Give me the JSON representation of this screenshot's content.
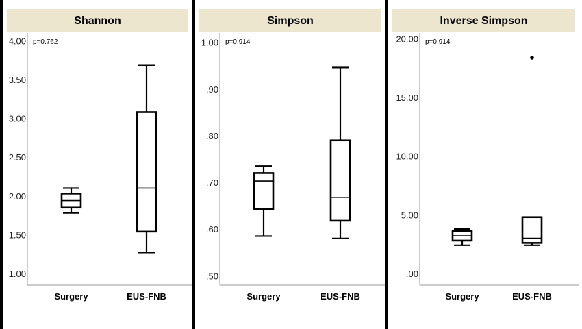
{
  "colors": {
    "header_strip": "#ede6cf",
    "box_stroke": "#000000",
    "frame": "#9a9a9a"
  },
  "chart_data": [
    {
      "type": "box",
      "title": "Shannon",
      "annotation": "p=0.762",
      "categories": [
        "Surgery",
        "EUS-FNB"
      ],
      "ylim": [
        0.85,
        4.1
      ],
      "ytick_values": [
        1.0,
        1.5,
        2.0,
        2.5,
        3.0,
        3.5,
        4.0
      ],
      "ytick_labels": [
        "1.00",
        "1.50",
        "2.00",
        "2.50",
        "3.00",
        "3.50",
        "4.00"
      ],
      "boxes": [
        {
          "category": "Surgery",
          "min": 1.78,
          "q1": 1.85,
          "median": 1.94,
          "q3": 2.03,
          "max": 2.1,
          "outliers": []
        },
        {
          "category": "EUS-FNB",
          "min": 1.27,
          "q1": 1.54,
          "median": 2.1,
          "q3": 3.08,
          "max": 3.68,
          "outliers": []
        }
      ]
    },
    {
      "type": "box",
      "title": "Simpson",
      "annotation": "p=0.914",
      "categories": [
        "Surgery",
        "EUS-FNB"
      ],
      "ylim": [
        0.48,
        1.02
      ],
      "ytick_values": [
        0.5,
        0.6,
        0.7,
        0.8,
        0.9,
        1.0
      ],
      "ytick_labels": [
        ".50",
        ".60",
        ".70",
        ".80",
        ".90",
        "1.00"
      ],
      "boxes": [
        {
          "category": "Surgery",
          "min": 0.585,
          "q1": 0.643,
          "median": 0.703,
          "q3": 0.72,
          "max": 0.735,
          "outliers": []
        },
        {
          "category": "EUS-FNB",
          "min": 0.58,
          "q1": 0.618,
          "median": 0.668,
          "q3": 0.79,
          "max": 0.946,
          "outliers": []
        }
      ]
    },
    {
      "type": "box",
      "title": "Inverse Simpson",
      "annotation": "p=0.914",
      "categories": [
        "Surgery",
        "EUS-FNB"
      ],
      "ylim": [
        -1.0,
        20.5
      ],
      "ytick_values": [
        0,
        5,
        10,
        15,
        20
      ],
      "ytick_labels": [
        ".00",
        "5.00",
        "10.00",
        "15.00",
        "20.00"
      ],
      "boxes": [
        {
          "category": "Surgery",
          "min": 2.4,
          "q1": 2.8,
          "median": 3.2,
          "q3": 3.6,
          "max": 3.8,
          "outliers": []
        },
        {
          "category": "EUS-FNB",
          "min": 2.4,
          "q1": 2.6,
          "median": 3.0,
          "q3": 4.8,
          "max": 4.8,
          "outliers": [
            18.4
          ]
        }
      ]
    }
  ]
}
